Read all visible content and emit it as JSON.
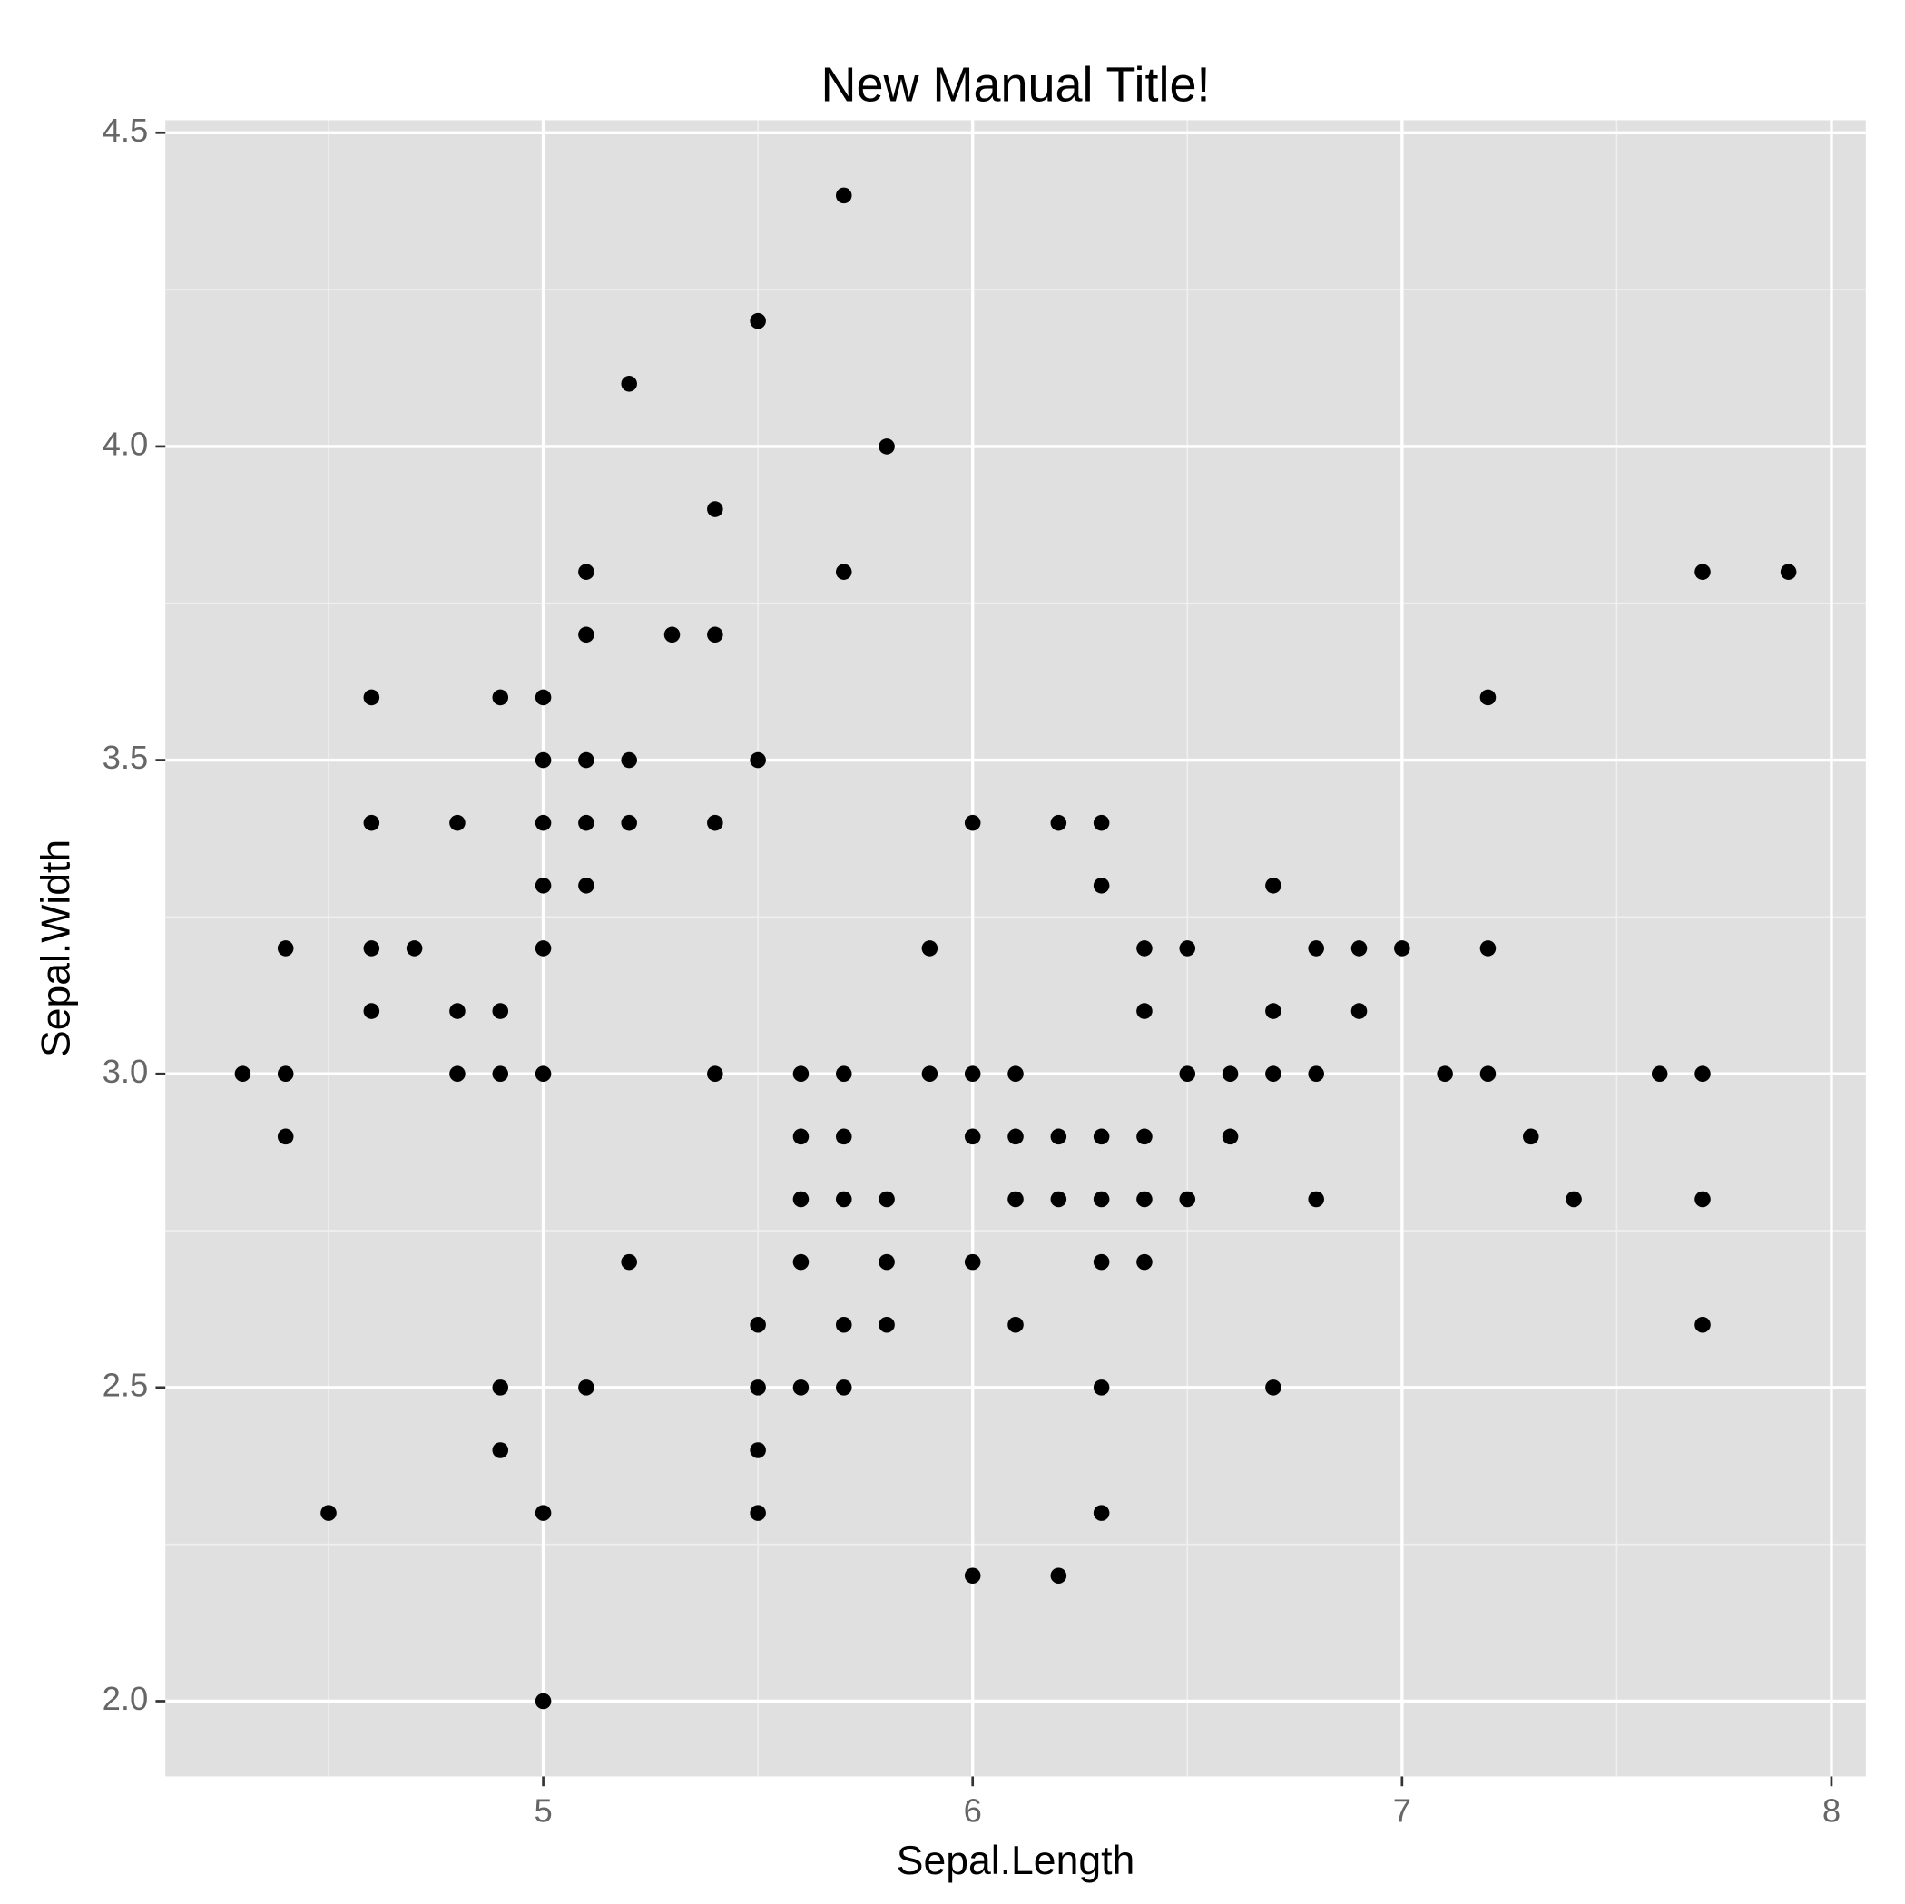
{
  "chart_data": {
    "type": "scatter",
    "title": "New Manual Title!",
    "x_label": "Sepal.Length",
    "y_label": "Sepal.Width",
    "color": "#000000",
    "grid": true,
    "x": [
      5.7,
      5.5,
      5.2,
      5.8,
      5.4,
      5.1,
      5.7,
      7.7,
      7.9,
      5.1,
      5.3,
      5.4,
      4.6,
      4.9,
      5.0,
      7.2,
      5.0,
      5.1,
      5.2,
      5.5,
      4.6,
      4.8,
      5.0,
      5.1,
      5.2,
      5.4,
      6.0,
      6.2,
      6.3,
      5.0,
      5.1,
      6.3,
      6.7,
      4.4,
      4.6,
      4.7,
      5.0,
      5.9,
      6.4,
      6.5,
      6.8,
      6.9,
      7.0,
      7.2,
      4.6,
      4.8,
      4.9,
      6.4,
      6.7,
      6.9,
      4.3,
      4.4,
      4.8,
      4.9,
      5.0,
      5.4,
      5.6,
      5.7,
      5.9,
      6.0,
      6.1,
      6.5,
      6.6,
      6.7,
      6.8,
      7.1,
      7.2,
      7.6,
      7.7,
      4.4,
      5.6,
      5.7,
      6.0,
      6.1,
      6.2,
      6.3,
      6.4,
      6.6,
      7.3,
      5.6,
      5.7,
      5.8,
      6.1,
      6.2,
      6.3,
      6.4,
      6.5,
      6.8,
      7.4,
      7.7,
      5.2,
      5.6,
      5.8,
      6.0,
      6.3,
      6.4,
      5.5,
      5.7,
      5.8,
      6.1,
      7.7,
      4.9,
      5.1,
      5.5,
      5.6,
      5.7,
      6.3,
      6.7,
      4.9,
      5.5,
      4.5,
      5.0,
      5.5,
      6.3,
      6.0,
      6.2,
      5.0
    ],
    "y": [
      4.4,
      4.2,
      4.1,
      4.0,
      3.9,
      3.8,
      3.8,
      3.8,
      3.8,
      3.7,
      3.7,
      3.7,
      3.6,
      3.6,
      3.6,
      3.6,
      3.5,
      3.5,
      3.5,
      3.5,
      3.4,
      3.4,
      3.4,
      3.4,
      3.4,
      3.4,
      3.4,
      3.4,
      3.4,
      3.3,
      3.3,
      3.3,
      3.3,
      3.2,
      3.2,
      3.2,
      3.2,
      3.2,
      3.2,
      3.2,
      3.2,
      3.2,
      3.2,
      3.2,
      3.1,
      3.1,
      3.1,
      3.1,
      3.1,
      3.1,
      3.0,
      3.0,
      3.0,
      3.0,
      3.0,
      3.0,
      3.0,
      3.0,
      3.0,
      3.0,
      3.0,
      3.0,
      3.0,
      3.0,
      3.0,
      3.0,
      3.0,
      3.0,
      3.0,
      2.9,
      2.9,
      2.9,
      2.9,
      2.9,
      2.9,
      2.9,
      2.9,
      2.9,
      2.9,
      2.8,
      2.8,
      2.8,
      2.8,
      2.8,
      2.8,
      2.8,
      2.8,
      2.8,
      2.8,
      2.8,
      2.7,
      2.7,
      2.7,
      2.7,
      2.7,
      2.7,
      2.6,
      2.6,
      2.6,
      2.6,
      2.6,
      2.5,
      2.5,
      2.5,
      2.5,
      2.5,
      2.5,
      2.5,
      2.4,
      2.4,
      2.3,
      2.3,
      2.3,
      2.3,
      2.2,
      2.2,
      2.0
    ],
    "xlim": [
      4.12,
      8.08
    ],
    "ylim": [
      1.88,
      4.52
    ],
    "xticks": [
      5,
      6,
      7,
      8
    ],
    "yticks": [
      {
        "value": 2,
        "label": "2.0"
      },
      {
        "value": 2.5,
        "label": "2.5"
      },
      {
        "value": 3,
        "label": "3.0"
      },
      {
        "value": 3.5,
        "label": "3.5"
      },
      {
        "value": 4,
        "label": "4.0"
      },
      {
        "value": 4.5,
        "label": "4.5"
      }
    ]
  }
}
